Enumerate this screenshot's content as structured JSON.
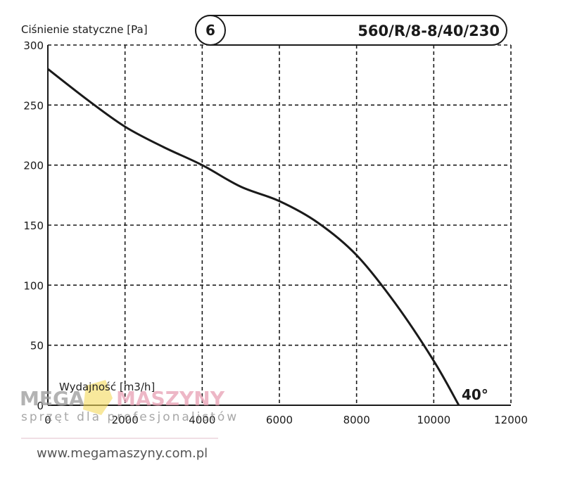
{
  "chart_data": {
    "type": "line",
    "ylabel": "Ciśnienie statyczne [Pa]",
    "xlabel": "Wydajność [m3/h]",
    "model": "560/R/8-8/40/230",
    "curve_number": "6",
    "blade_angle": "40°",
    "xlim": [
      0,
      12000
    ],
    "ylim": [
      0,
      300
    ],
    "x_ticks": [
      "0",
      "2000",
      "4000",
      "6000",
      "8000",
      "10000",
      "12000"
    ],
    "y_ticks": [
      "0",
      "50",
      "100",
      "150",
      "200",
      "250",
      "300"
    ],
    "grid": true,
    "grid_style": "dashed",
    "series": [
      {
        "x": [
          0,
          1000,
          2000,
          3000,
          4000,
          5000,
          6000,
          7000,
          8000,
          9000,
          10000,
          10650
        ],
        "values": [
          280,
          255,
          232,
          215,
          200,
          182,
          170,
          152,
          125,
          85,
          37,
          0
        ]
      }
    ]
  },
  "watermark": {
    "brand_left": "MEGA",
    "brand_right": "MASZYNY",
    "tagline": "sprzęt dla profesjonalistów",
    "url": "www.megamaszyny.com.pl",
    "colors": {
      "brand_left": "#9a9a9a",
      "brand_right": "#e8a0b4",
      "logo": "#f2d85a"
    }
  }
}
